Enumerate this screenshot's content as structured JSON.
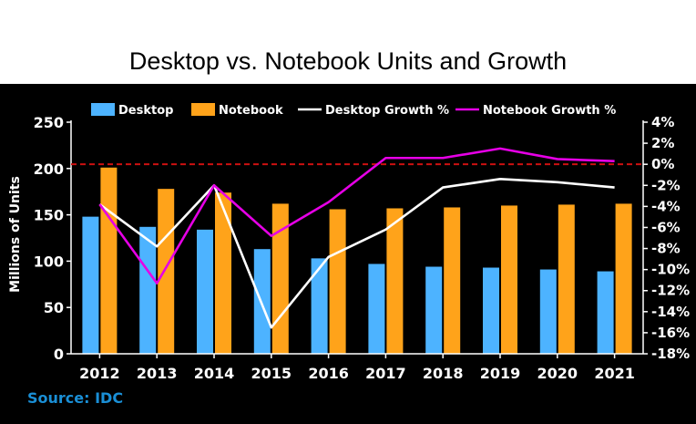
{
  "title": "Desktop vs. Notebook Units and Growth",
  "source": "Source: IDC",
  "colors": {
    "background": "#000000",
    "desktop": "#4db3ff",
    "notebook": "#ffa31a",
    "desktop_growth": "#ffffff",
    "notebook_growth": "#e600e6",
    "zero_line": "#cc1111"
  },
  "chart_data": {
    "type": "bar",
    "categories": [
      "2012",
      "2013",
      "2014",
      "2015",
      "2016",
      "2017",
      "2018",
      "2019",
      "2020",
      "2021"
    ],
    "series": [
      {
        "name": "Desktop",
        "type": "bar",
        "axis": "left",
        "values": [
          148,
          137,
          134,
          113,
          103,
          97,
          94,
          93,
          91,
          89
        ]
      },
      {
        "name": "Notebook",
        "type": "bar",
        "axis": "left",
        "values": [
          201,
          178,
          174,
          162,
          156,
          157,
          158,
          160,
          161,
          162
        ]
      },
      {
        "name": "Desktop Growth %",
        "type": "line",
        "axis": "right",
        "values": [
          -3.8,
          -7.8,
          -2.0,
          -15.5,
          -8.8,
          -6.2,
          -2.2,
          -1.4,
          -1.7,
          -2.2
        ]
      },
      {
        "name": "Notebook Growth %",
        "type": "line",
        "axis": "right",
        "values": [
          -3.8,
          -11.3,
          -2.0,
          -6.8,
          -3.6,
          0.6,
          0.6,
          1.5,
          0.5,
          0.3
        ]
      }
    ],
    "ylabel": "Millions of Units",
    "ylim": [
      0,
      250
    ],
    "yticks": [
      "0",
      "50",
      "100",
      "150",
      "200",
      "250"
    ],
    "y2lim": [
      -18,
      4
    ],
    "y2ticks": [
      "4%",
      "2%",
      "0%",
      "-2%",
      "-4%",
      "-6%",
      "-8%",
      "-10%",
      "-12%",
      "-14%",
      "-16%",
      "-18%"
    ],
    "reference_line": {
      "axis": "right",
      "value": 0,
      "style": "dashed"
    },
    "legend": [
      "Desktop",
      "Notebook",
      "Desktop Growth %",
      "Notebook Growth %"
    ],
    "legend_position": "top",
    "grid": false
  }
}
